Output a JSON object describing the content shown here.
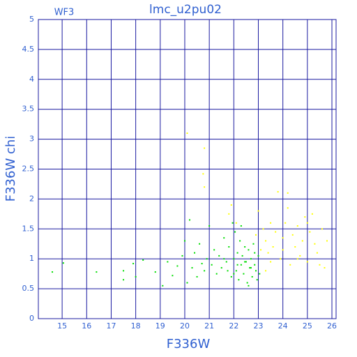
{
  "chart_data": {
    "type": "scatter",
    "title": "lmc_u2pu02",
    "subtitle": "WF3",
    "x_label": "F336W",
    "y_label": "F336W chi",
    "xlim": [
      14.03,
      26.17
    ],
    "ylim": [
      0,
      5
    ],
    "xticks": [
      15,
      16,
      17,
      18,
      19,
      20,
      21,
      22,
      23,
      24,
      25,
      26
    ],
    "yticks": [
      0,
      0.5,
      1,
      1.5,
      2,
      2.5,
      3,
      3.5,
      4,
      4.5,
      5
    ],
    "grid": true,
    "grid_color": "#1a1aa0",
    "series": [
      {
        "color": "#00dd00",
        "x": [
          14.6,
          15.05,
          16.4,
          17.5,
          17.5,
          17.9,
          18.0,
          18.3,
          18.8,
          19.1,
          19.3,
          19.5,
          19.7,
          19.9,
          20.0,
          20.1,
          20.2,
          20.3,
          20.4,
          20.5,
          20.6,
          20.7,
          20.8,
          20.9,
          21.0,
          21.1,
          21.2,
          21.3,
          21.4,
          21.5,
          21.6,
          21.7,
          21.8,
          21.9,
          22.0,
          22.05,
          22.1,
          22.15,
          22.2,
          22.25,
          22.3,
          22.35,
          22.4,
          22.45,
          22.5,
          22.55,
          22.6,
          22.65,
          22.7,
          22.75,
          22.8,
          22.85,
          22.9,
          22.95,
          23.0,
          23.05,
          21.95,
          22.3,
          22.6,
          21.75,
          22.15,
          22.45,
          22.7,
          22.85,
          21.6,
          22.0
        ],
        "values": [
          0.78,
          0.93,
          0.78,
          0.8,
          0.65,
          0.92,
          0.7,
          0.98,
          0.78,
          0.55,
          0.95,
          0.72,
          0.88,
          1.05,
          1.3,
          0.6,
          1.65,
          0.85,
          1.1,
          0.7,
          1.25,
          0.92,
          0.8,
          1.0,
          1.55,
          0.9,
          1.15,
          0.75,
          1.05,
          0.85,
          1.35,
          0.95,
          1.2,
          0.7,
          1.0,
          1.45,
          0.8,
          1.1,
          0.65,
          1.3,
          0.9,
          1.05,
          0.75,
          1.2,
          0.95,
          0.6,
          1.15,
          0.85,
          1.0,
          0.7,
          1.25,
          0.9,
          0.8,
          0.65,
          1.05,
          0.75,
          1.6,
          1.55,
          0.55,
          0.8,
          0.9,
          0.95,
          0.85,
          1.1,
          1.0,
          0.75
        ]
      },
      {
        "color": "#ffff00",
        "x": [
          20.1,
          20.8,
          20.75,
          20.8,
          21.9,
          21.8,
          22.1,
          23.0,
          23.2,
          23.3,
          23.4,
          23.5,
          23.6,
          23.7,
          23.8,
          23.9,
          24.0,
          24.1,
          24.2,
          24.3,
          24.4,
          24.5,
          24.6,
          24.7,
          24.8,
          24.9,
          25.0,
          25.1,
          25.2,
          25.3,
          25.4,
          25.5,
          25.6,
          25.7,
          25.8,
          24.2,
          23.3,
          23.1,
          23.5,
          24.6,
          25.0,
          24.0,
          22.9
        ],
        "values": [
          3.1,
          2.85,
          2.42,
          2.2,
          1.9,
          1.75,
          1.6,
          1.8,
          1.5,
          1.3,
          1.1,
          1.6,
          1.2,
          1.45,
          2.12,
          1.0,
          1.35,
          1.6,
          1.85,
          0.9,
          1.4,
          1.2,
          1.55,
          1.05,
          1.3,
          1.7,
          0.95,
          1.45,
          1.75,
          1.25,
          1.1,
          0.9,
          1.5,
          0.85,
          1.3,
          2.1,
          0.8,
          1.15,
          0.95,
          1.0,
          1.6,
          1.15,
          1.4
        ]
      }
    ]
  }
}
